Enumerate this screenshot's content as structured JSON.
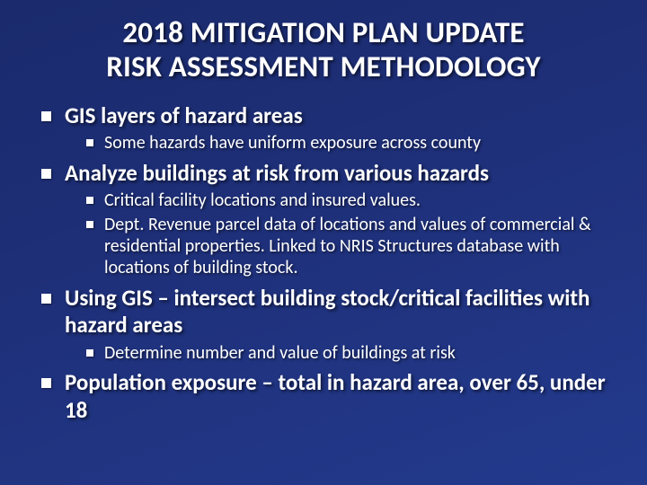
{
  "colors": {
    "background_gradient_start": "#1a2a6c",
    "background_gradient_end": "#233a8d",
    "text": "#ffffff",
    "bullet": "#ffffff",
    "shadow": "rgba(0,0,0,0.6)"
  },
  "typography": {
    "font_family": "Calibri",
    "title_fontsize": 33,
    "title_weight": 700,
    "lvl1_fontsize": 25,
    "lvl1_weight": 700,
    "lvl2_fontsize": 20,
    "lvl2_weight": 400
  },
  "title": {
    "line1": "2018 MITIGATION PLAN UPDATE",
    "line2": "RISK ASSESSMENT METHODOLOGY"
  },
  "bullets": [
    {
      "text": "GIS layers of hazard areas",
      "sub": [
        "Some hazards have uniform exposure across county"
      ]
    },
    {
      "text": "Analyze buildings at risk from various hazards",
      "sub": [
        "Critical facility locations and insured values.",
        "Dept. Revenue parcel data of locations and values of commercial & residential properties. Linked to NRIS Structures database with locations of building stock."
      ]
    },
    {
      "text": "Using GIS – intersect building stock/critical facilities with hazard areas",
      "sub": [
        "Determine number and value of buildings at risk"
      ]
    },
    {
      "text": "Population exposure – total in hazard area, over 65, under 18",
      "sub": []
    }
  ]
}
